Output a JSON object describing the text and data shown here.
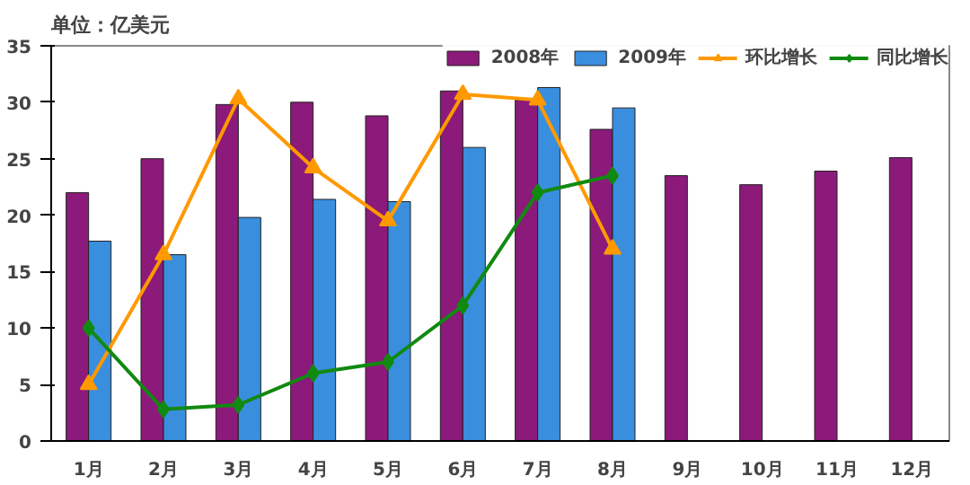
{
  "chart_data": {
    "type": "bar",
    "title": "单位：亿美元",
    "categories": [
      "1月",
      "2月",
      "3月",
      "4月",
      "5月",
      "6月",
      "7月",
      "8月",
      "9月",
      "10月",
      "11月",
      "12月"
    ],
    "series": [
      {
        "name": "2008年",
        "color": "#8b1a7a",
        "values": [
          22,
          25,
          29.8,
          30,
          28.8,
          31,
          30.2,
          27.6,
          23.5,
          22.7,
          23.9,
          25.1
        ]
      },
      {
        "name": "2009年",
        "color": "#3a8ede",
        "values": [
          17.7,
          16.5,
          19.8,
          21.4,
          21.2,
          26,
          31.3,
          29.5,
          null,
          null,
          null,
          null
        ]
      },
      {
        "name": "环比增长",
        "type": "line",
        "marker": "triangle",
        "color": "#ff9900",
        "values": [
          5,
          16.5,
          30.3,
          24.2,
          19.5,
          30.7,
          30.2,
          17,
          null,
          null,
          null,
          null
        ]
      },
      {
        "name": "同比增长",
        "type": "line",
        "marker": "diamond",
        "color": "#108a10",
        "values": [
          10,
          2.8,
          3.2,
          6,
          7,
          12,
          22,
          23.5,
          null,
          null,
          null,
          null
        ]
      }
    ],
    "ylim": [
      0,
      35
    ],
    "yticks": [
      0,
      5,
      10,
      15,
      20,
      25,
      30,
      35
    ],
    "grid": false,
    "legend": "top right"
  }
}
